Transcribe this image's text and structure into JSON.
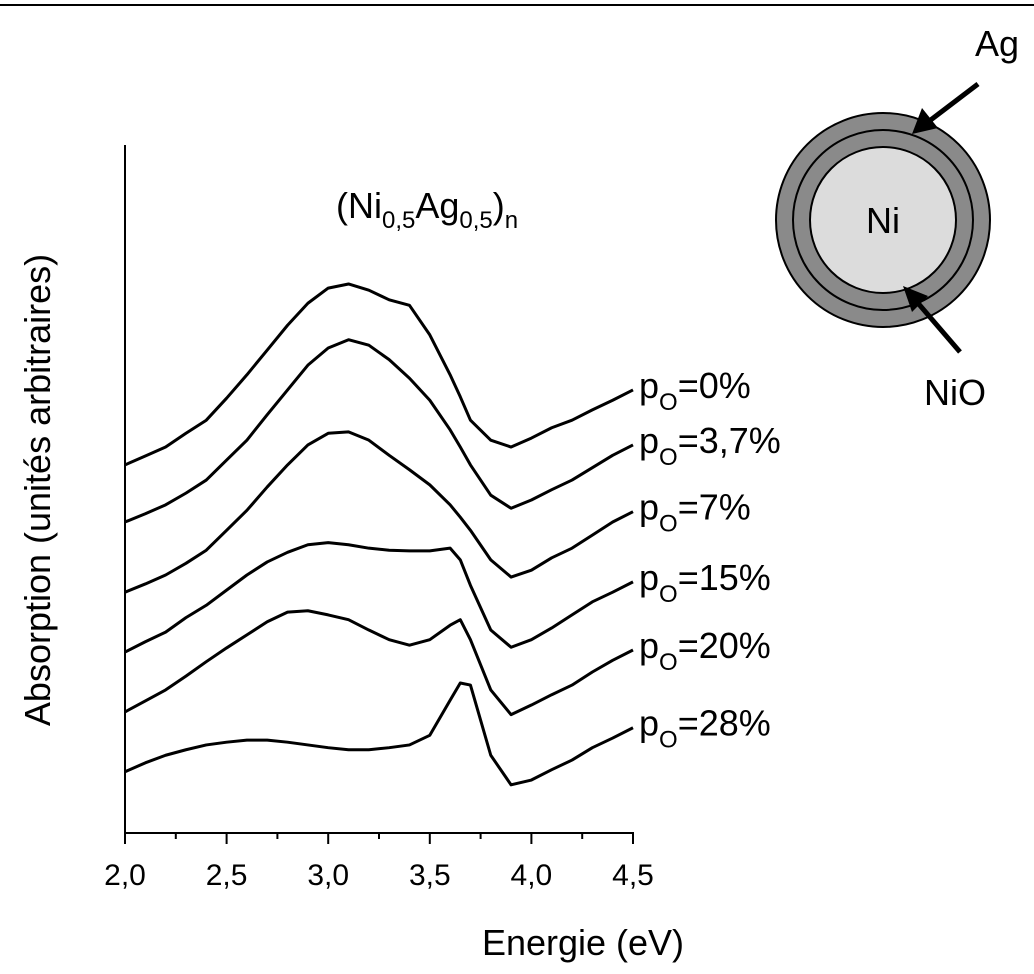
{
  "chart_data": {
    "type": "line",
    "annotation": {
      "parts": [
        "(Ni",
        "0,5",
        "Ag",
        "0,5",
        ")",
        "n"
      ]
    },
    "x_label": "Energie (eV)",
    "y_label": "Absorption (unités arbitraires)",
    "legend_prefix": "p",
    "legend_subscript": "O",
    "x": [
      2.0,
      2.1,
      2.2,
      2.3,
      2.4,
      2.5,
      2.6,
      2.7,
      2.8,
      2.9,
      3.0,
      3.1,
      3.2,
      3.3,
      3.4,
      3.5,
      3.6,
      3.65,
      3.7,
      3.8,
      3.9,
      4.0,
      4.1,
      4.2,
      4.3,
      4.4,
      4.5
    ],
    "series": [
      {
        "name": "=0%",
        "color": "#000000",
        "values": [
          53.5,
          54.8,
          56.1,
          58.1,
          60.0,
          63.2,
          66.6,
          70.2,
          73.8,
          77.0,
          79.2,
          79.8,
          78.9,
          77.5,
          76.7,
          72.4,
          66.6,
          63.4,
          60.0,
          57.1,
          56.1,
          57.4,
          58.9,
          60.0,
          61.5,
          62.9,
          64.4
        ]
      },
      {
        "name": "=3,7%",
        "color": "#000000",
        "values": [
          45.2,
          46.4,
          47.7,
          49.4,
          51.3,
          54.2,
          57.1,
          60.8,
          64.4,
          68.0,
          70.5,
          71.7,
          70.9,
          68.8,
          66.1,
          62.9,
          58.6,
          56.1,
          53.5,
          49.1,
          47.2,
          48.4,
          49.9,
          51.3,
          53.1,
          54.9,
          56.4
        ]
      },
      {
        "name": "=7%",
        "color": "#000000",
        "values": [
          35.0,
          36.2,
          37.5,
          39.2,
          41.1,
          44.0,
          46.9,
          50.3,
          53.5,
          56.4,
          58.1,
          58.3,
          57.1,
          54.9,
          52.8,
          50.6,
          47.7,
          45.9,
          44.0,
          39.7,
          37.2,
          38.2,
          40.0,
          41.4,
          43.3,
          45.2,
          46.7
        ]
      },
      {
        "name": "=15%",
        "color": "#000000",
        "values": [
          26.3,
          27.8,
          29.2,
          31.3,
          33.1,
          35.3,
          37.5,
          39.4,
          40.8,
          41.9,
          42.2,
          41.9,
          41.4,
          41.1,
          41.0,
          41.0,
          41.4,
          39.7,
          36.0,
          29.5,
          27.0,
          28.1,
          29.8,
          31.7,
          33.6,
          35.0,
          36.5
        ]
      },
      {
        "name": "=20%",
        "color": "#000000",
        "values": [
          17.6,
          19.2,
          20.8,
          22.8,
          24.9,
          26.9,
          28.8,
          30.7,
          32.1,
          32.3,
          31.7,
          31.0,
          29.5,
          28.1,
          27.3,
          28.1,
          30.2,
          31.0,
          28.1,
          20.8,
          17.2,
          18.6,
          20.1,
          21.5,
          23.4,
          25.1,
          26.6
        ]
      },
      {
        "name": "=28%",
        "color": "#000000",
        "values": [
          8.9,
          10.2,
          11.3,
          12.1,
          12.8,
          13.2,
          13.5,
          13.5,
          13.2,
          12.8,
          12.4,
          12.1,
          12.1,
          12.4,
          12.8,
          14.2,
          19.3,
          21.8,
          21.5,
          11.3,
          7.0,
          7.7,
          9.2,
          10.6,
          12.4,
          13.8,
          15.3
        ]
      }
    ],
    "xlim": [
      2.0,
      4.5
    ],
    "ylim": [
      0,
      100
    ],
    "xticks": [
      {
        "value": 2.0,
        "label": "2,0"
      },
      {
        "value": 2.5,
        "label": "2,5"
      },
      {
        "value": 3.0,
        "label": "3,0"
      },
      {
        "value": 3.5,
        "label": "3,5"
      },
      {
        "value": 4.0,
        "label": "4,0"
      },
      {
        "value": 4.5,
        "label": "4,5"
      }
    ],
    "xminorticks": [
      2.25,
      2.75,
      3.25,
      3.75,
      4.25
    ],
    "inset": {
      "core": "Ni",
      "shell": "Ag",
      "oxide": "NiO"
    }
  }
}
